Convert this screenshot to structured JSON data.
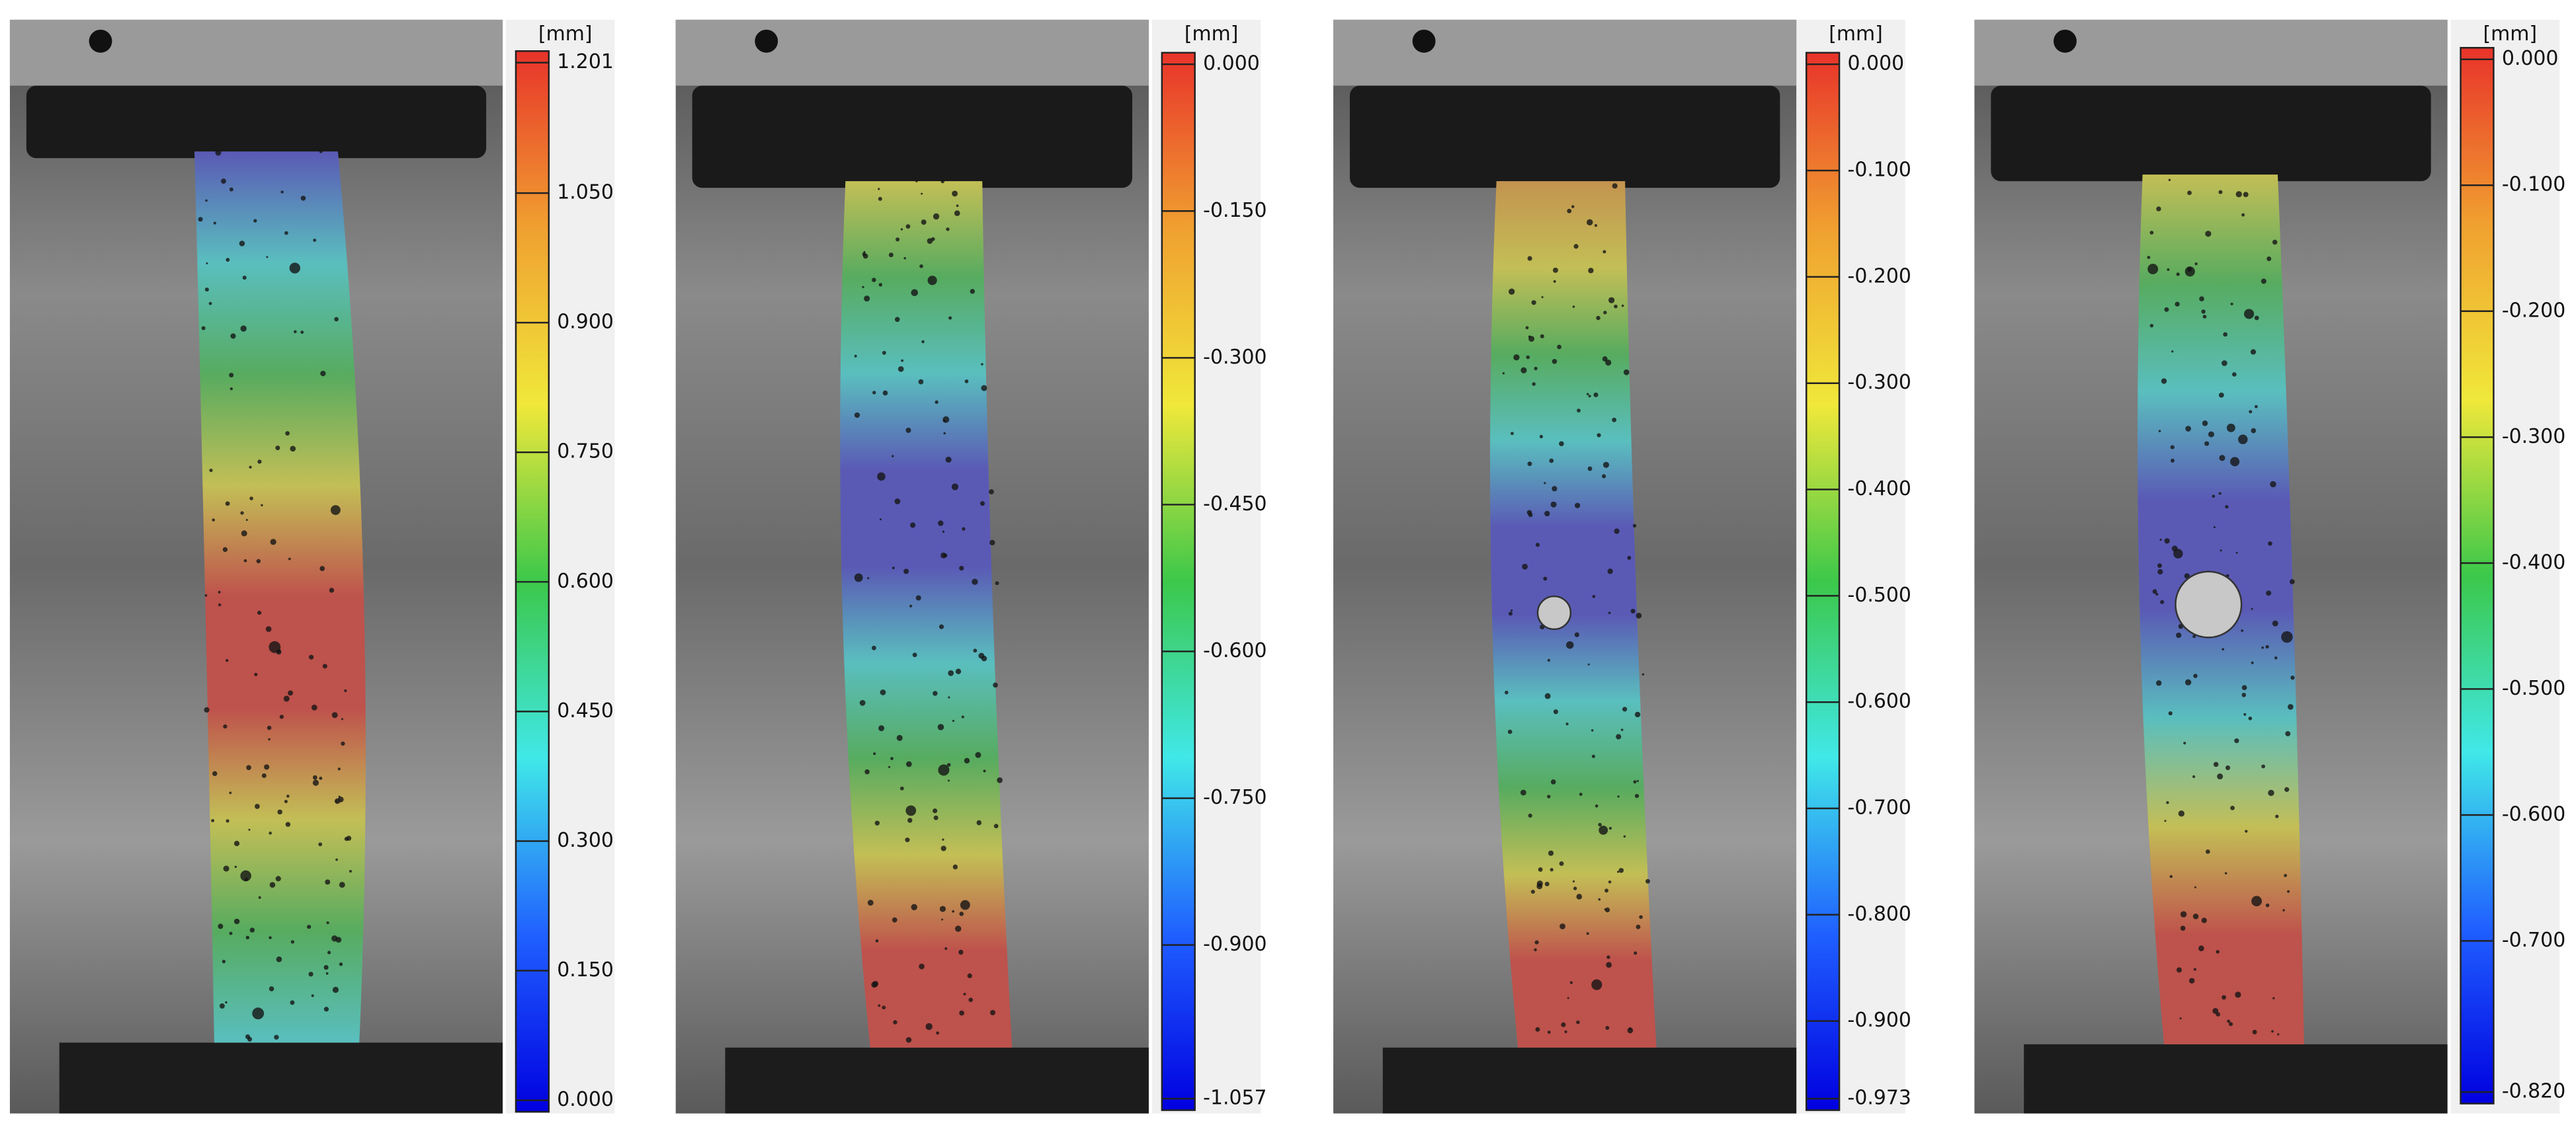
{
  "panels": [
    {
      "unit": "[mm]",
      "ticks": [
        {
          "value": 1.201,
          "label": "1.201"
        },
        {
          "value": 1.05,
          "label": "1.050"
        },
        {
          "value": 0.9,
          "label": "0.900"
        },
        {
          "value": 0.75,
          "label": "0.750"
        },
        {
          "value": 0.6,
          "label": "0.600"
        },
        {
          "value": 0.45,
          "label": "0.450"
        },
        {
          "value": 0.3,
          "label": "0.300"
        },
        {
          "value": 0.15,
          "label": "0.150"
        },
        {
          "value": 0,
          "label": "0.000"
        }
      ]
    },
    {
      "unit": "[mm]",
      "ticks": [
        {
          "value": 0,
          "label": "0.000"
        },
        {
          "value": -0.15,
          "label": "-0.150"
        },
        {
          "value": -0.3,
          "label": "-0.300"
        },
        {
          "value": -0.45,
          "label": "-0.450"
        },
        {
          "value": -0.6,
          "label": "-0.600"
        },
        {
          "value": -0.75,
          "label": "-0.750"
        },
        {
          "value": -0.9,
          "label": "-0.900"
        },
        {
          "value": -1.057,
          "label": "-1.057"
        }
      ]
    },
    {
      "unit": "[mm]",
      "ticks": [
        {
          "value": 0,
          "label": "0.000"
        },
        {
          "value": -0.1,
          "label": "-0.100"
        },
        {
          "value": -0.2,
          "label": "-0.200"
        },
        {
          "value": -0.3,
          "label": "-0.300"
        },
        {
          "value": -0.4,
          "label": "-0.400"
        },
        {
          "value": -0.5,
          "label": "-0.500"
        },
        {
          "value": -0.6,
          "label": "-0.600"
        },
        {
          "value": -0.7,
          "label": "-0.700"
        },
        {
          "value": -0.8,
          "label": "-0.800"
        },
        {
          "value": -0.9,
          "label": "-0.900"
        },
        {
          "value": -0.973,
          "label": "-0.973"
        }
      ]
    },
    {
      "unit": "[mm]",
      "ticks": [
        {
          "value": 0,
          "label": "0.000"
        },
        {
          "value": -0.1,
          "label": "-0.100"
        },
        {
          "value": -0.2,
          "label": "-0.200"
        },
        {
          "value": -0.3,
          "label": "-0.300"
        },
        {
          "value": -0.4,
          "label": "-0.400"
        },
        {
          "value": -0.5,
          "label": "-0.500"
        },
        {
          "value": -0.6,
          "label": "-0.600"
        },
        {
          "value": -0.7,
          "label": "-0.700"
        },
        {
          "value": -0.82,
          "label": "-0.820"
        }
      ]
    }
  ]
}
